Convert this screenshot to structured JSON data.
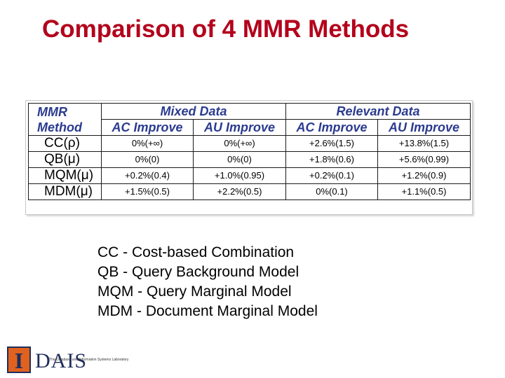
{
  "title": "Comparison of 4 MMR Methods",
  "table": {
    "method_header_line1": "MMR",
    "method_header_line2": "Method",
    "groups": [
      "Mixed Data",
      "Relevant Data"
    ],
    "subheaders": [
      "AC Improve",
      "AU Improve",
      "AC Improve",
      "AU Improve"
    ],
    "rows": [
      {
        "method": "CC(ρ)",
        "values": [
          "0%(+∞)",
          "0%(+∞)",
          "+2.6%(1.5)",
          "+13.8%(1.5)"
        ]
      },
      {
        "method": "QB(μ)",
        "values": [
          "0%(0)",
          "0%(0)",
          "+1.8%(0.6)",
          "+5.6%(0.99)"
        ]
      },
      {
        "method": "MQM(μ)",
        "values": [
          "+0.2%(0.4)",
          "+1.0%(0.95)",
          "+0.2%(0.1)",
          "+1.2%(0.9)"
        ]
      },
      {
        "method": "MDM(μ)",
        "values": [
          "+1.5%(0.5)",
          "+2.2%(0.5)",
          "0%(0.1)",
          "+1.1%(0.5)"
        ]
      }
    ]
  },
  "definitions": [
    "CC - Cost-based Combination",
    "QB - Query Background Model",
    "MQM - Query Marginal Model",
    "MDM - Document Marginal Model"
  ],
  "footer": {
    "logo_letter": "I",
    "logo_text": "DAIS",
    "lab_name": "The Database and Information Systems Laboratory",
    "colors": {
      "title": "#b3001b",
      "header": "#2b3b8f",
      "logo_orange": "#e0621f",
      "logo_navy": "#1f2d5c"
    }
  }
}
